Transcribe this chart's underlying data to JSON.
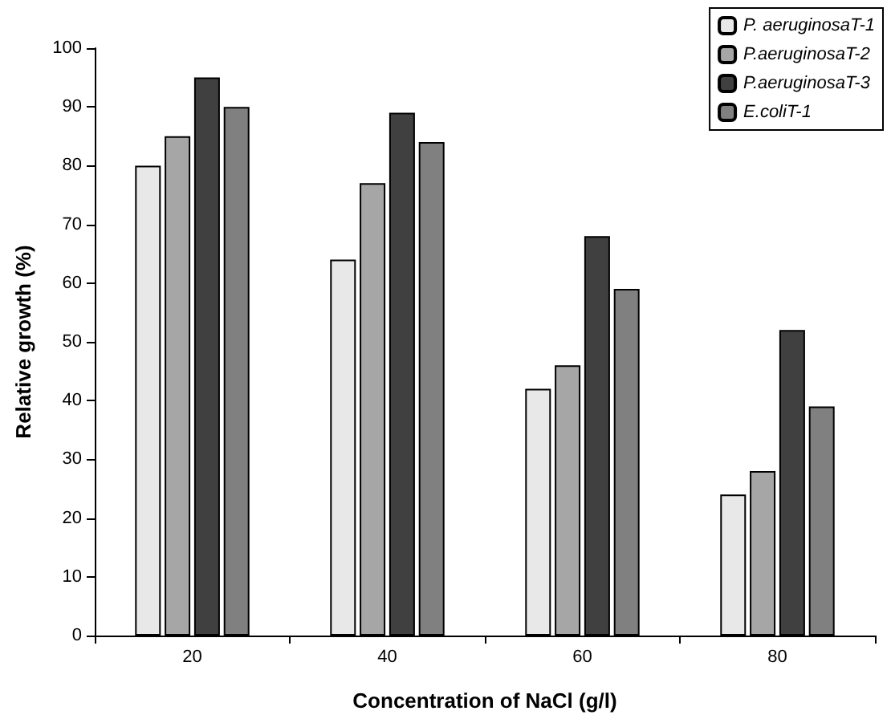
{
  "chart_data": {
    "type": "bar",
    "xlabel": "Concentration of NaCl (g/l)",
    "ylabel": "Relative growth (%)",
    "categories": [
      "20",
      "40",
      "60",
      "80"
    ],
    "series": [
      {
        "name": "P. aeruginosaT-1",
        "color": "#e8e8e8",
        "values": [
          80,
          64,
          42,
          24
        ]
      },
      {
        "name": "P.aeruginosaT-2",
        "color": "#a6a6a6",
        "values": [
          85,
          77,
          46,
          28
        ]
      },
      {
        "name": "P.aeruginosaT-3",
        "color": "#404040",
        "values": [
          95,
          89,
          68,
          52
        ]
      },
      {
        "name": "E.coliT-1",
        "color": "#808080",
        "values": [
          90,
          84,
          59,
          39
        ]
      }
    ],
    "ylim": [
      0,
      100
    ],
    "yticks": [
      0,
      10,
      20,
      30,
      40,
      50,
      60,
      70,
      80,
      90,
      100
    ],
    "grid": false,
    "legend": "top right"
  }
}
